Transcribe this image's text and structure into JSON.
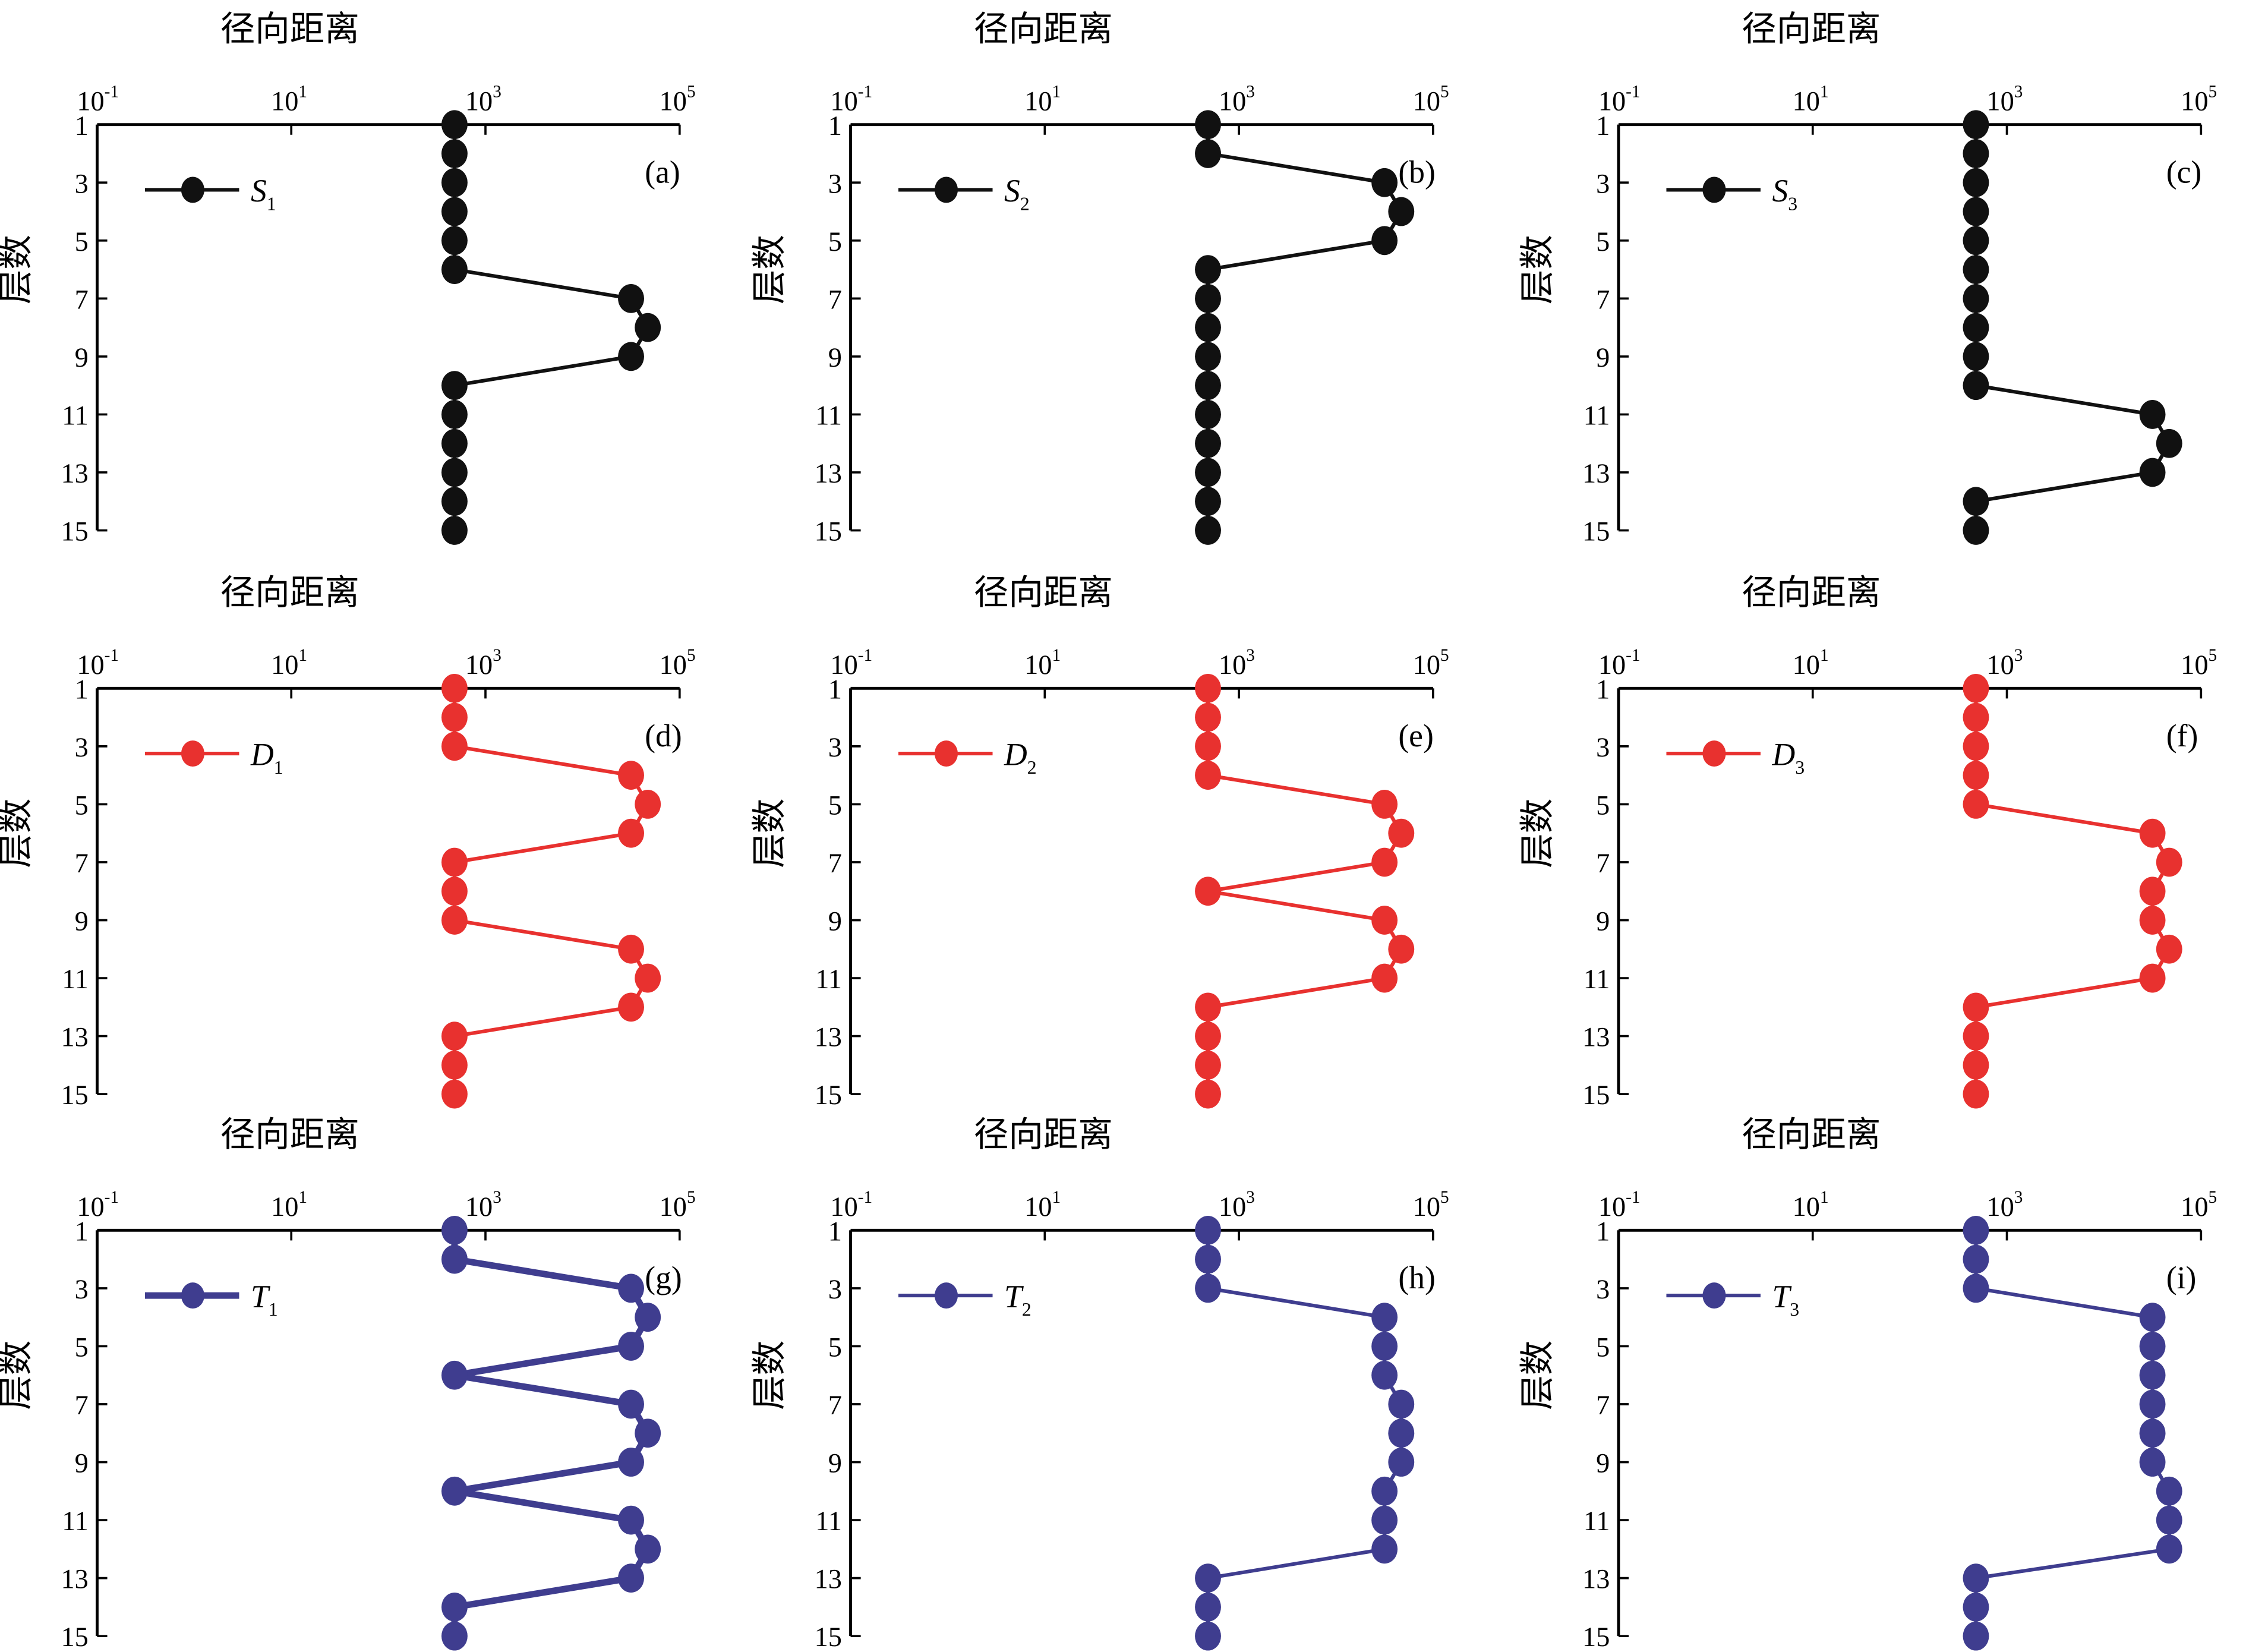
{
  "chart_data": {
    "type": "line",
    "x_scale": "log",
    "xlim": [
      0.1,
      100000
    ],
    "ylim": [
      1,
      15
    ],
    "y_inverted": true,
    "xlabel": "径向距离",
    "ylabel": "层数",
    "x_tick_labels": [
      {
        "base": "10",
        "exp": "-1"
      },
      {
        "base": "10",
        "exp": "1"
      },
      {
        "base": "10",
        "exp": "3"
      },
      {
        "base": "10",
        "exp": "5"
      }
    ],
    "x_tick_values": [
      0.1,
      10,
      1000,
      100000
    ],
    "y_tick_labels": [
      "1",
      "3",
      "5",
      "7",
      "9",
      "11",
      "13",
      "15"
    ],
    "layers": [
      1,
      2,
      3,
      4,
      5,
      6,
      7,
      8,
      9,
      10,
      11,
      12,
      13,
      14,
      15
    ],
    "colors": {
      "black": "#111111",
      "red": "#e8312f",
      "blue": "#3f3d8f"
    },
    "panels": [
      {
        "letter": "(a)",
        "series": {
          "name": "S",
          "sub": "1",
          "color": "#111111",
          "values": [
            480,
            480,
            480,
            480,
            480,
            480,
            31600,
            47000,
            31600,
            480,
            480,
            480,
            480,
            480,
            480
          ]
        }
      },
      {
        "letter": "(b)",
        "series": {
          "name": "S",
          "sub": "2",
          "color": "#111111",
          "values": [
            480,
            480,
            31600,
            47000,
            31600,
            480,
            480,
            480,
            480,
            480,
            480,
            480,
            480,
            480,
            480
          ]
        }
      },
      {
        "letter": "(c)",
        "series": {
          "name": "S",
          "sub": "3",
          "color": "#111111",
          "values": [
            480,
            480,
            480,
            480,
            480,
            480,
            480,
            480,
            480,
            480,
            31600,
            47000,
            31600,
            480,
            480
          ]
        }
      },
      {
        "letter": "(d)",
        "series": {
          "name": "D",
          "sub": "1",
          "color": "#e8312f",
          "values": [
            480,
            480,
            480,
            31600,
            47000,
            31600,
            480,
            480,
            480,
            31600,
            47000,
            31600,
            480,
            480,
            480
          ]
        }
      },
      {
        "letter": "(e)",
        "series": {
          "name": "D",
          "sub": "2",
          "color": "#e8312f",
          "values": [
            480,
            480,
            480,
            480,
            31600,
            47000,
            31600,
            480,
            31600,
            47000,
            31600,
            480,
            480,
            480,
            480
          ]
        }
      },
      {
        "letter": "(f)",
        "series": {
          "name": "D",
          "sub": "3",
          "color": "#e8312f",
          "values": [
            480,
            480,
            480,
            480,
            480,
            31600,
            47000,
            31600,
            31600,
            47000,
            31600,
            480,
            480,
            480,
            480
          ]
        }
      },
      {
        "letter": "(g)",
        "series": {
          "name": "T",
          "sub": "1",
          "color": "#3f3d8f",
          "values": [
            480,
            480,
            31600,
            47000,
            31600,
            480,
            31600,
            47000,
            31600,
            480,
            31600,
            47000,
            31600,
            480,
            480
          ]
        }
      },
      {
        "letter": "(h)",
        "series": {
          "name": "T",
          "sub": "2",
          "color": "#3f3d8f",
          "values": [
            480,
            480,
            480,
            31600,
            31600,
            31600,
            47000,
            47000,
            47000,
            31600,
            31600,
            31600,
            480,
            480,
            480
          ]
        }
      },
      {
        "letter": "(i)",
        "series": {
          "name": "T",
          "sub": "3",
          "color": "#3f3d8f",
          "values": [
            480,
            480,
            480,
            31600,
            31600,
            31600,
            31600,
            31600,
            31600,
            47000,
            47000,
            47000,
            480,
            480,
            480
          ]
        }
      }
    ]
  }
}
